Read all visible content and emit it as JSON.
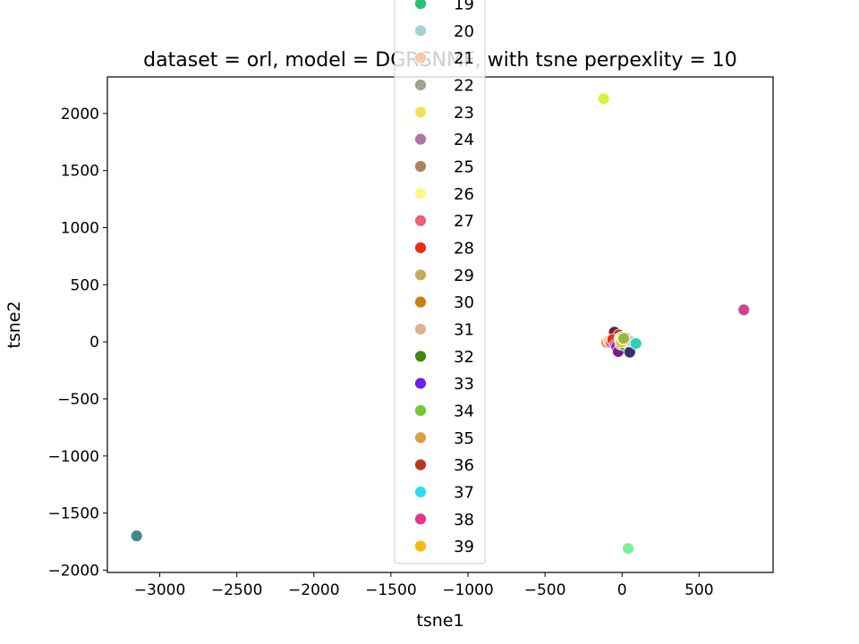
{
  "chart_data": {
    "type": "scatter",
    "title": "dataset = orl, model = DGRSNMF, with tsne perpexlity = 10",
    "xlabel": "tsne1",
    "ylabel": "tsne2",
    "xlim": [
      -3340,
      980
    ],
    "ylim": [
      -2020,
      2320
    ],
    "x_ticks": [
      -3000,
      -2500,
      -2000,
      -1500,
      -1000,
      -500,
      0,
      500
    ],
    "y_ticks": [
      -2000,
      -1500,
      -1000,
      -500,
      0,
      500,
      1000,
      1500,
      2000
    ],
    "x_tick_labels": [
      "−3000",
      "−2500",
      "−2000",
      "−1500",
      "−1000",
      "−500",
      "0",
      "500"
    ],
    "y_tick_labels": [
      "−2000",
      "−1500",
      "−1000",
      "−500",
      "0",
      "500",
      "1000",
      "1500",
      "2000"
    ],
    "grid": false,
    "legend_placement": "upper-center",
    "legend": [
      {
        "label": "19",
        "color": "#2bbf72"
      },
      {
        "label": "20",
        "color": "#a7d3d2"
      },
      {
        "label": "21",
        "color": "#f8c9ad"
      },
      {
        "label": "22",
        "color": "#a29f93"
      },
      {
        "label": "23",
        "color": "#f4df5b"
      },
      {
        "label": "24",
        "color": "#ab77ad"
      },
      {
        "label": "25",
        "color": "#a88560"
      },
      {
        "label": "26",
        "color": "#f8f98a"
      },
      {
        "label": "27",
        "color": "#ee5f78"
      },
      {
        "label": "28",
        "color": "#e92e16"
      },
      {
        "label": "29",
        "color": "#c6ad55"
      },
      {
        "label": "30",
        "color": "#c7800f"
      },
      {
        "label": "31",
        "color": "#dcb48d"
      },
      {
        "label": "32",
        "color": "#3f8a10"
      },
      {
        "label": "33",
        "color": "#6e1cef"
      },
      {
        "label": "34",
        "color": "#73c936"
      },
      {
        "label": "35",
        "color": "#dd9e43"
      },
      {
        "label": "36",
        "color": "#b53a1e"
      },
      {
        "label": "37",
        "color": "#2ddaf7"
      },
      {
        "label": "38",
        "color": "#ea3489"
      },
      {
        "label": "39",
        "color": "#f7b90c"
      }
    ],
    "points": [
      {
        "x": -120,
        "y": 2130,
        "color": "#d9f13f"
      },
      {
        "x": 790,
        "y": 280,
        "color": "#d0468c"
      },
      {
        "x": -3150,
        "y": -1700,
        "color": "#45878f"
      },
      {
        "x": 40,
        "y": -1810,
        "color": "#7cf38f"
      },
      {
        "x": -50,
        "y": 85,
        "color": "#7a1f2d"
      },
      {
        "x": -20,
        "y": 60,
        "color": "#b53a1e"
      },
      {
        "x": -100,
        "y": -5,
        "color": "#dd9e43"
      },
      {
        "x": -85,
        "y": 10,
        "color": "#f8c9ad"
      },
      {
        "x": -70,
        "y": -10,
        "color": "#ee5f78"
      },
      {
        "x": -60,
        "y": 20,
        "color": "#e92e16"
      },
      {
        "x": -45,
        "y": -30,
        "color": "#ea3489"
      },
      {
        "x": -35,
        "y": -45,
        "color": "#6e1cef"
      },
      {
        "x": -25,
        "y": -85,
        "color": "#7a1b8c"
      },
      {
        "x": -15,
        "y": 30,
        "color": "#f8f98a"
      },
      {
        "x": -10,
        "y": -20,
        "color": "#c6ad55"
      },
      {
        "x": 0,
        "y": 40,
        "color": "#dcb48d"
      },
      {
        "x": 5,
        "y": -5,
        "color": "#3f8a10"
      },
      {
        "x": 10,
        "y": 10,
        "color": "#a29f93"
      },
      {
        "x": 15,
        "y": -30,
        "color": "#2bbf72"
      },
      {
        "x": 20,
        "y": 25,
        "color": "#ab77ad"
      },
      {
        "x": 25,
        "y": 5,
        "color": "#c7800f"
      },
      {
        "x": 30,
        "y": 35,
        "color": "#a7d3d2"
      },
      {
        "x": 35,
        "y": -10,
        "color": "#f4df5b"
      },
      {
        "x": 40,
        "y": 15,
        "color": "#a88560"
      },
      {
        "x": 50,
        "y": -90,
        "color": "#3b2f6e"
      },
      {
        "x": 55,
        "y": 5,
        "color": "#d6c9e3"
      },
      {
        "x": 90,
        "y": -15,
        "color": "#2ad3b0"
      },
      {
        "x": 0,
        "y": 20,
        "color": "#2ddaf7"
      },
      {
        "x": -5,
        "y": 0,
        "color": "#f7b90c"
      },
      {
        "x": 5,
        "y": 25,
        "color": "#73c936"
      },
      {
        "x": 10,
        "y": 30,
        "color": "#9ab83a"
      }
    ]
  }
}
